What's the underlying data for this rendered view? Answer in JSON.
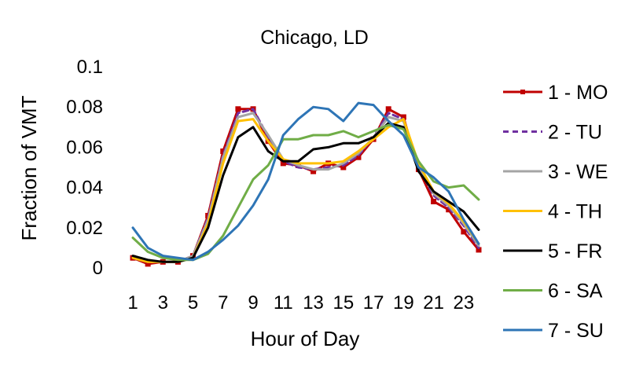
{
  "chart_data": {
    "type": "line",
    "title": "Chicago, LD",
    "xlabel": "Hour of Day",
    "ylabel": "Fraction of VMT",
    "xlim": [
      1,
      24
    ],
    "ylim": [
      0,
      0.1
    ],
    "x_tick_labels": [
      "1",
      "3",
      "5",
      "7",
      "9",
      "11",
      "13",
      "15",
      "17",
      "19",
      "21",
      "23"
    ],
    "y_tick_labels": [
      "0",
      "0.02",
      "0.04",
      "0.06",
      "0.08",
      "0.1"
    ],
    "grid": false,
    "legend_position": "right",
    "x": [
      1,
      2,
      3,
      4,
      5,
      6,
      7,
      8,
      9,
      10,
      11,
      12,
      13,
      14,
      15,
      16,
      17,
      18,
      19,
      20,
      21,
      22,
      23,
      24
    ],
    "series": [
      {
        "name": "1 - MO",
        "color": "#c00000",
        "dash": "solid",
        "marker": "square",
        "values": [
          0.005,
          0.002,
          0.003,
          0.003,
          0.006,
          0.026,
          0.058,
          0.079,
          0.079,
          0.063,
          0.052,
          0.051,
          0.048,
          0.052,
          0.05,
          0.055,
          0.064,
          0.079,
          0.075,
          0.049,
          0.033,
          0.029,
          0.018,
          0.009
        ]
      },
      {
        "name": "2 - TU",
        "color": "#7030a0",
        "dash": "dashed",
        "marker": "none",
        "values": [
          0.005,
          0.003,
          0.003,
          0.003,
          0.006,
          0.025,
          0.056,
          0.077,
          0.079,
          0.065,
          0.053,
          0.05,
          0.049,
          0.05,
          0.051,
          0.056,
          0.065,
          0.077,
          0.074,
          0.05,
          0.036,
          0.03,
          0.021,
          0.01
        ]
      },
      {
        "name": "3 - WE",
        "color": "#a5a5a5",
        "dash": "solid",
        "marker": "none",
        "values": [
          0.005,
          0.003,
          0.003,
          0.003,
          0.006,
          0.024,
          0.055,
          0.075,
          0.077,
          0.066,
          0.054,
          0.051,
          0.049,
          0.049,
          0.052,
          0.057,
          0.065,
          0.075,
          0.073,
          0.051,
          0.037,
          0.031,
          0.022,
          0.011
        ]
      },
      {
        "name": "4 - TH",
        "color": "#ffc000",
        "dash": "solid",
        "marker": "none",
        "values": [
          0.005,
          0.003,
          0.003,
          0.003,
          0.005,
          0.022,
          0.052,
          0.073,
          0.074,
          0.063,
          0.054,
          0.052,
          0.052,
          0.052,
          0.053,
          0.058,
          0.064,
          0.07,
          0.074,
          0.052,
          0.038,
          0.032,
          0.023,
          0.012
        ]
      },
      {
        "name": "5 - FR",
        "color": "#000000",
        "dash": "solid",
        "marker": "none",
        "values": [
          0.006,
          0.004,
          0.003,
          0.003,
          0.005,
          0.02,
          0.046,
          0.065,
          0.07,
          0.058,
          0.053,
          0.053,
          0.059,
          0.06,
          0.062,
          0.062,
          0.065,
          0.072,
          0.07,
          0.048,
          0.038,
          0.033,
          0.028,
          0.019
        ]
      },
      {
        "name": "6 - SA",
        "color": "#70ad47",
        "dash": "solid",
        "marker": "none",
        "values": [
          0.015,
          0.008,
          0.005,
          0.004,
          0.004,
          0.007,
          0.016,
          0.03,
          0.044,
          0.051,
          0.064,
          0.064,
          0.066,
          0.066,
          0.068,
          0.065,
          0.068,
          0.071,
          0.069,
          0.053,
          0.043,
          0.04,
          0.041,
          0.034
        ]
      },
      {
        "name": "7 - SU",
        "color": "#2e75b6",
        "dash": "solid",
        "marker": "none",
        "values": [
          0.02,
          0.01,
          0.006,
          0.005,
          0.004,
          0.008,
          0.014,
          0.021,
          0.031,
          0.044,
          0.066,
          0.074,
          0.08,
          0.079,
          0.073,
          0.082,
          0.081,
          0.073,
          0.066,
          0.05,
          0.045,
          0.038,
          0.024,
          0.012
        ]
      }
    ]
  }
}
